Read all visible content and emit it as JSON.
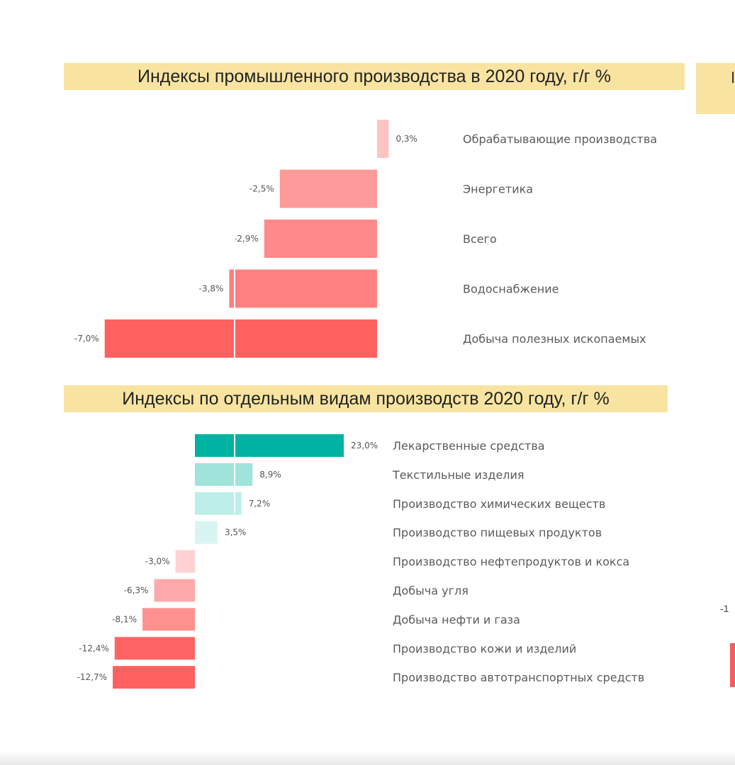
{
  "chart_data": [
    {
      "type": "bar",
      "orientation": "horizontal",
      "title": "Индексы промышленного производства в 2020 году, г/г %",
      "categories": [
        "Обрабатывающие производства",
        "Энергетика",
        "Всего",
        "Водоснабжение",
        "Добыча полезных ископаемых"
      ],
      "values": [
        0.3,
        -2.5,
        -2.9,
        -3.8,
        -7.0
      ],
      "value_labels": [
        "0,3%",
        "-2,5%",
        "-2,9%",
        "-3,8%",
        "-7,0%"
      ],
      "colors": [
        "#ffc4c4",
        "#ff9a9a",
        "#ff8a8a",
        "#ff8080",
        "#ff6060"
      ]
    },
    {
      "type": "bar",
      "orientation": "horizontal",
      "title": "Индексы по отдельным видам производств 2020 году, г/г %",
      "categories": [
        "Лекарственные средства",
        "Текстильные изделия",
        "Производство химических веществ",
        "Производство пищевых продуктов",
        "Производство нефтепродуктов и кокса",
        "Добыча угля",
        "Добыча нефти и газа",
        "Производство кожи и изделий",
        "Производство автотранспортных средств"
      ],
      "values": [
        23.0,
        8.9,
        7.2,
        3.5,
        -3.0,
        -6.3,
        -8.1,
        -12.4,
        -12.7
      ],
      "value_labels": [
        "23,0%",
        "8,9%",
        "7,2%",
        "3,5%",
        "-3,0%",
        "-6,3%",
        "-8,1%",
        "-12,4%",
        "-12,7%"
      ],
      "colors": [
        "#00b2a2",
        "#9fe3da",
        "#bdeee9",
        "#d9f5f2",
        "#ffd2d2",
        "#ffaaaa",
        "#ff9090",
        "#ff6464",
        "#ff6060"
      ]
    }
  ]
}
